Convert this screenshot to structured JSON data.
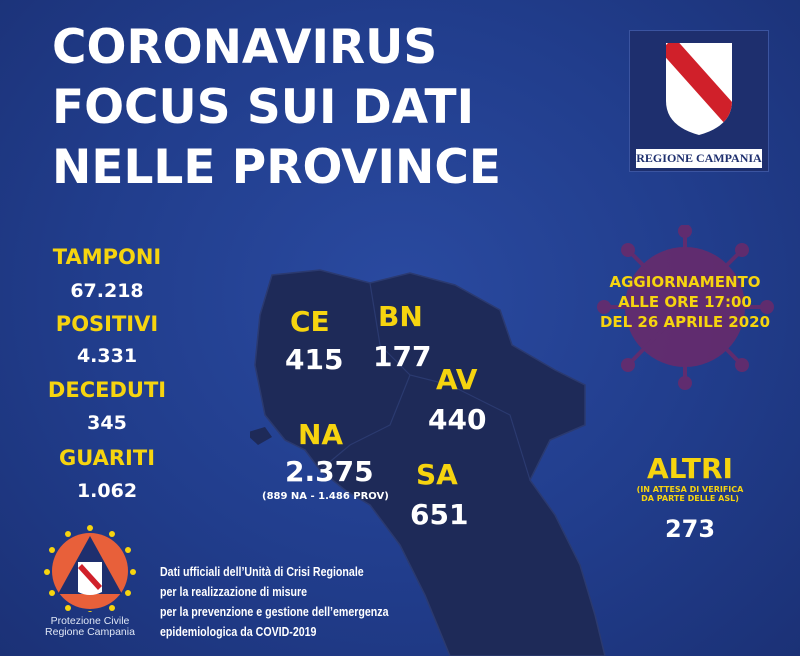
{
  "title": {
    "line1": "CORONAVIRUS",
    "line2": "FOCUS SUI DATI",
    "line3": "NELLE PROVINCE"
  },
  "logo": {
    "caption": "REGIONE CAMPANIA"
  },
  "stats": [
    {
      "label": "TAMPONI",
      "value": "67.218"
    },
    {
      "label": "POSITIVI",
      "value": "4.331"
    },
    {
      "label": "DECEDUTI",
      "value": "345"
    },
    {
      "label": "GUARITI",
      "value": "1.062"
    }
  ],
  "update": {
    "line1": "AGGIORNAMENTO",
    "line2": "ALLE ORE 17:00",
    "line3": "DEL 26 APRILE 2020"
  },
  "provinces": {
    "ce": {
      "code": "CE",
      "value": "415"
    },
    "bn": {
      "code": "BN",
      "value": "177"
    },
    "av": {
      "code": "AV",
      "value": "440"
    },
    "na": {
      "code": "NA",
      "value": "2.375",
      "note": "(889 NA - 1.486 PROV)"
    },
    "sa": {
      "code": "SA",
      "value": "651"
    }
  },
  "altri": {
    "label": "ALTRI",
    "note1": "(IN ATTESA DI VERIFICA",
    "note2": "DA PARTE DELLE ASL)",
    "value": "273"
  },
  "protezione": {
    "line1": "Protezione Civile",
    "line2": "Regione Campania"
  },
  "footer": [
    "Dati ufficiali dell’Unità di Crisi Regionale",
    "per la realizzazione di misure",
    "per la prevenzione e gestione dell’emergenza",
    "epidemiologica da COVID-2019"
  ],
  "colors": {
    "background": "#213d8c",
    "accent": "#f6d40f",
    "map": "#1e2a58"
  }
}
